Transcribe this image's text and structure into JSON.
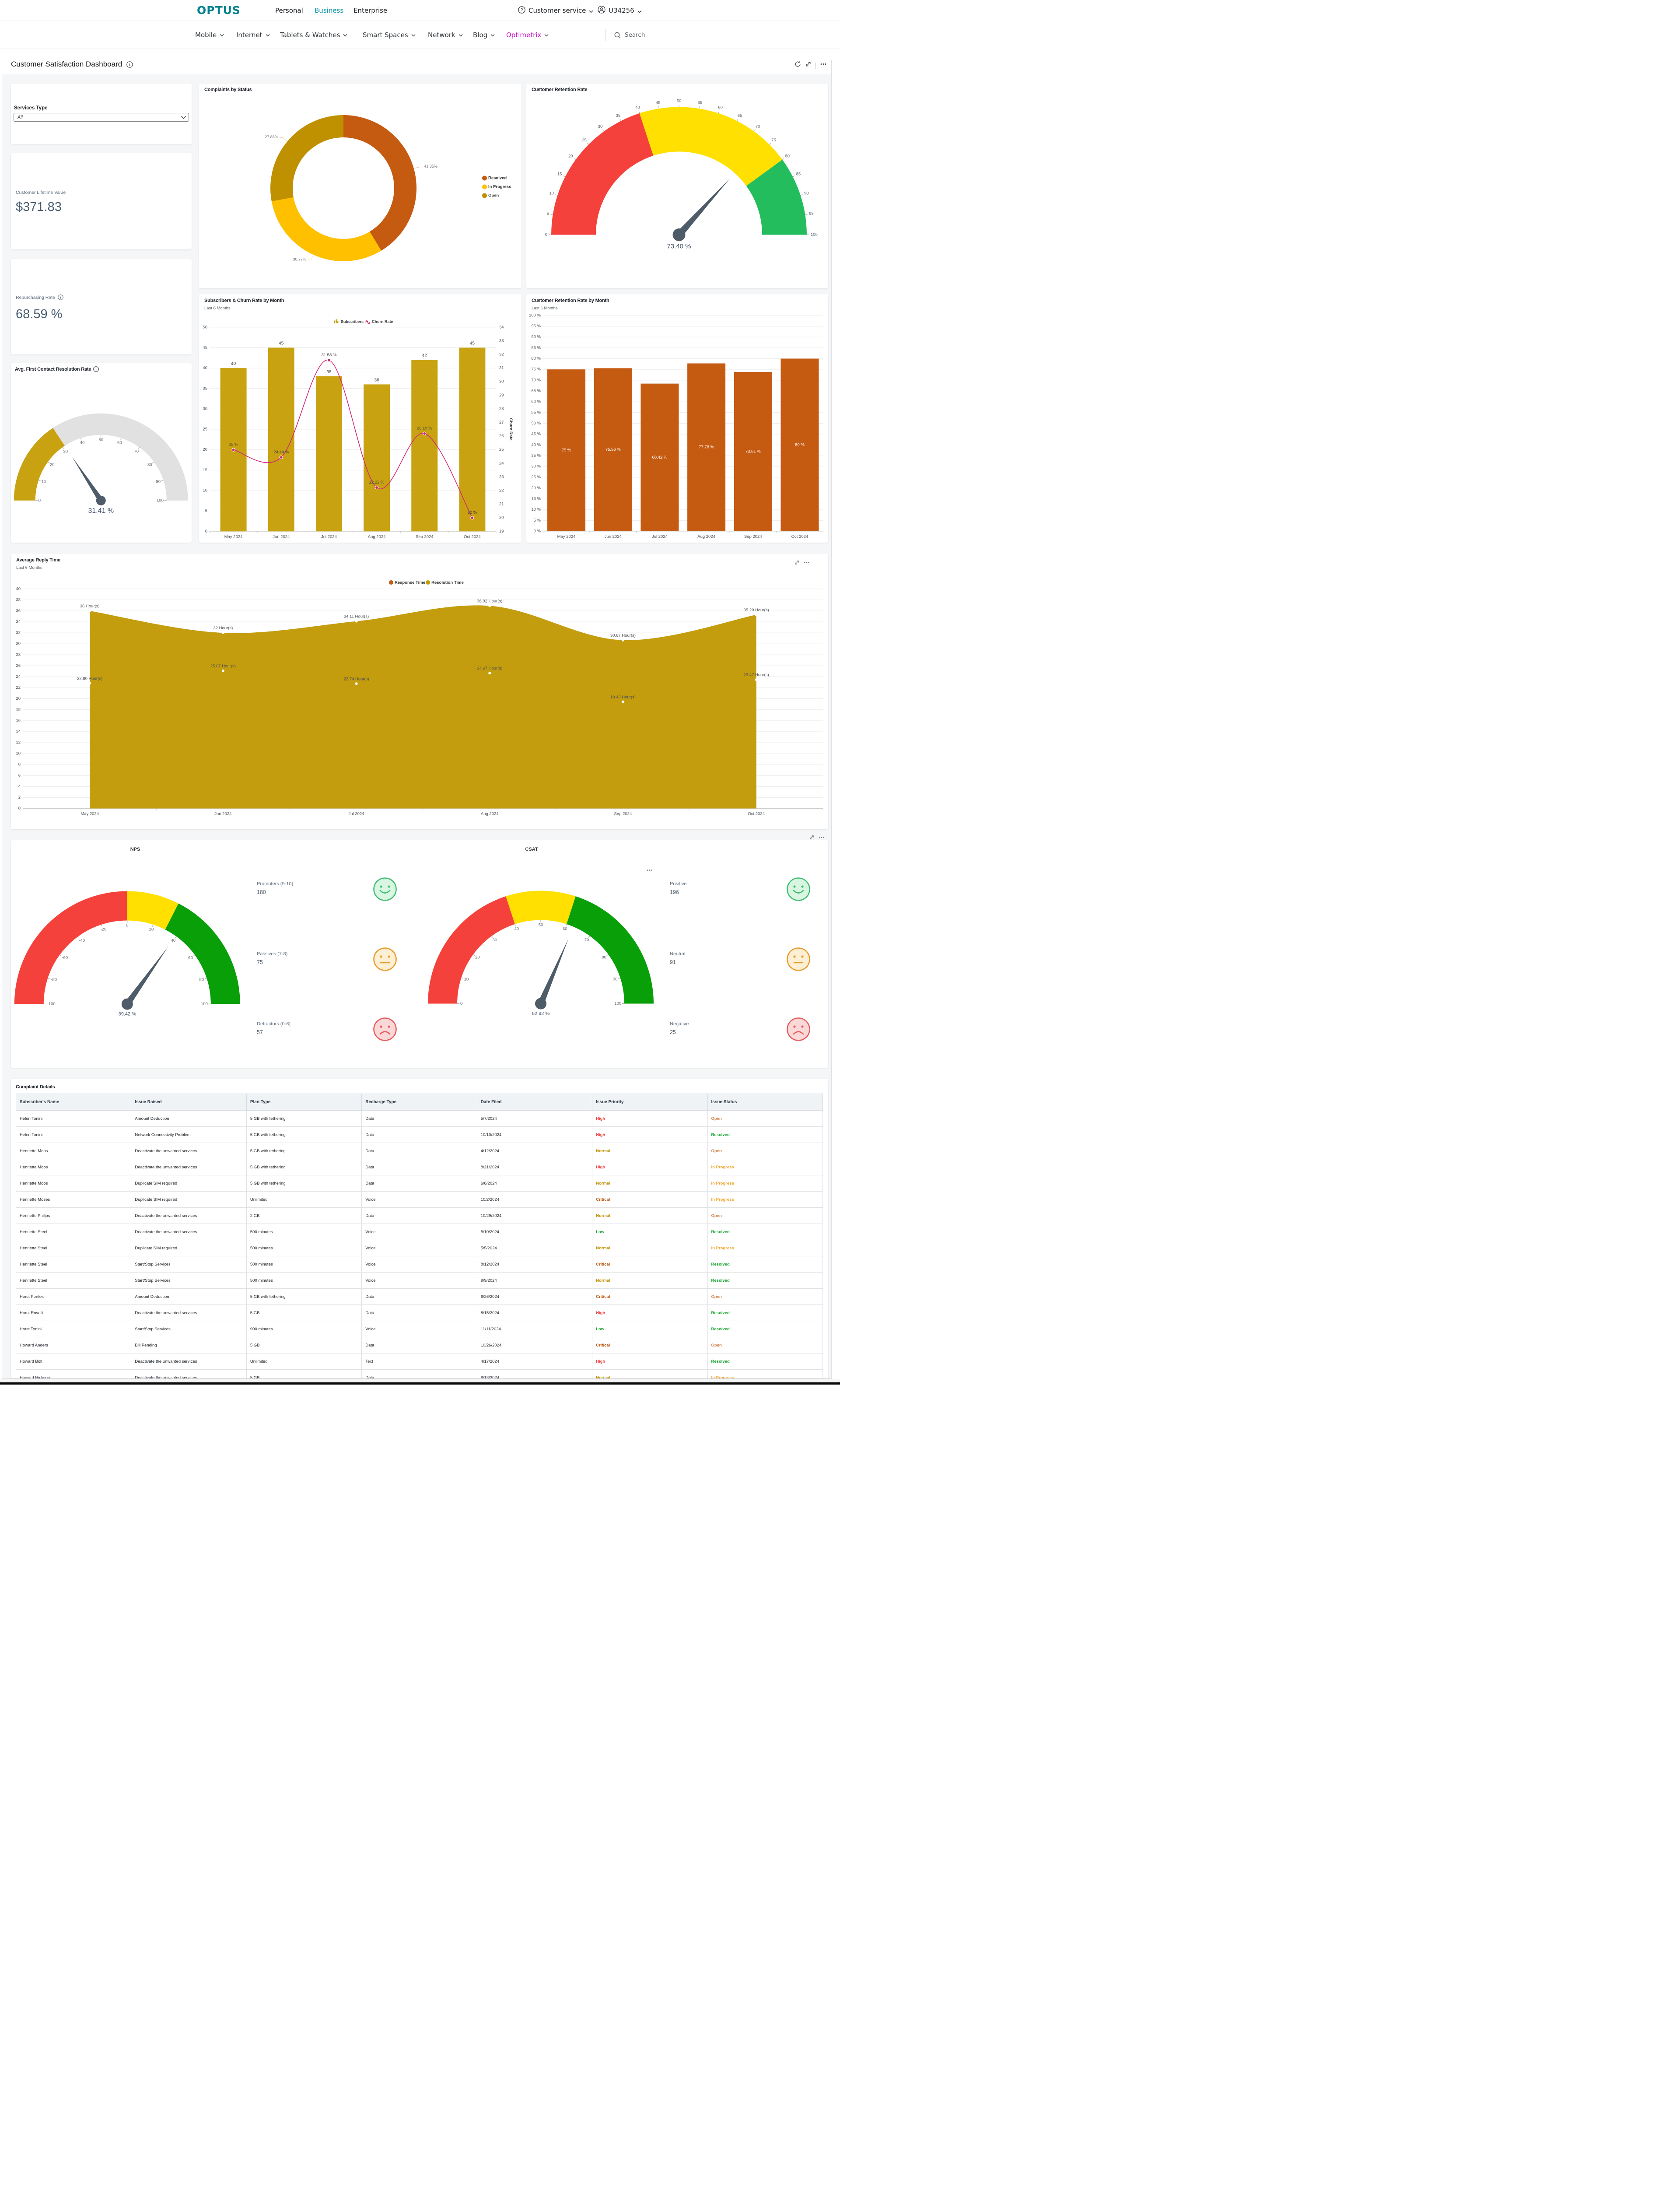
{
  "nav_top": {
    "logo": "OPTUS",
    "links": [
      {
        "label": "Personal",
        "active": false
      },
      {
        "label": "Business",
        "active": true
      },
      {
        "label": "Enterprise",
        "active": false
      }
    ],
    "help_label": "Customer service",
    "user_label": "U34256"
  },
  "nav_main": {
    "items": [
      {
        "label": "Mobile",
        "active": false
      },
      {
        "label": "Internet",
        "active": false
      },
      {
        "label": "Tablets & Watches",
        "active": false
      },
      {
        "label": "Smart Spaces",
        "active": false
      },
      {
        "label": "Network",
        "active": false
      },
      {
        "label": "Blog",
        "active": false
      },
      {
        "label": "Optimetrix",
        "active": true
      }
    ],
    "search_label": "Search"
  },
  "dashboard": {
    "title": "Customer Satisfaction Dashboard"
  },
  "filters": {
    "services_type_label": "Services Type",
    "services_type_value": "All"
  },
  "kpis": {
    "clv_label": "Customer Lifetime Value",
    "clv_value": "$371.83",
    "repurchasing_label": "Repurchasing Rate",
    "repurchasing_value": "68.59 %"
  },
  "chart_data": [
    {
      "id": "complaints",
      "type": "pie",
      "title": "Complaints by Status",
      "labels": [
        "Resolved",
        "In Progress",
        "Open"
      ],
      "values": [
        41.35,
        30.77,
        27.88
      ],
      "value_labels": [
        "41.35%",
        "30.77%",
        "27.88%"
      ],
      "colors": [
        "#C55A11",
        "#FFC000",
        "#BF9000"
      ],
      "legend_position": "right"
    },
    {
      "id": "retention_gauge",
      "type": "gauge",
      "title": "Customer Retention Rate",
      "min": 0,
      "max": 100,
      "value": 73.4,
      "value_label": "73.40 %",
      "zones": [
        {
          "from": 0,
          "to": 40,
          "color": "#F5413B"
        },
        {
          "from": 40,
          "to": 80,
          "color": "#FFE000"
        },
        {
          "from": 80,
          "to": 100,
          "color": "#23BD5D"
        }
      ],
      "tick_step": 5,
      "tick_labels": "outside"
    },
    {
      "id": "fcr_gauge",
      "type": "gauge",
      "title": "Avg. First Contact Resolution Rate",
      "min": 0,
      "max": 100,
      "value": 31.41,
      "value_label": "31.41 %",
      "zones": [
        {
          "from": 0,
          "to": 31.41,
          "color": "#C8A211"
        },
        {
          "from": 31.41,
          "to": 100,
          "color": "#E1E1E1"
        }
      ],
      "tick_step": 10,
      "tick_labels": "inside"
    },
    {
      "id": "subscribers",
      "type": "bar+line",
      "title": "Subscribers & Churn Rate by Month",
      "subtitle": "Last 6 Months",
      "categories": [
        "May 2024",
        "Jun 2024",
        "Jul 2024",
        "Aug 2024",
        "Sep 2024",
        "Oct 2024"
      ],
      "series": [
        {
          "name": "Subscribers",
          "type": "bar",
          "color": "#C8A211",
          "values": [
            40,
            45,
            38,
            36,
            42,
            45
          ]
        },
        {
          "name": "Churn Rate",
          "type": "line",
          "color": "#D22573",
          "values": [
            25,
            24.44,
            31.58,
            22.22,
            26.19,
            20
          ],
          "point_labels": [
            "25 %",
            "24.44 %",
            "31.58 %",
            "22.22 %",
            "26.19 %",
            "20 %"
          ]
        }
      ],
      "y_left": {
        "min": 0,
        "max": 50,
        "step": 5
      },
      "y_right": {
        "min": 19,
        "max": 34,
        "step": 1,
        "title": "Churn Rate"
      }
    },
    {
      "id": "retention_by_month",
      "type": "bar",
      "title": "Customer Retention Rate by Month",
      "subtitle": "Last 6 Months",
      "categories": [
        "May 2024",
        "Jun 2024",
        "Jul 2024",
        "Aug 2024",
        "Sep 2024",
        "Oct 2024"
      ],
      "values": [
        75,
        75.56,
        68.42,
        77.78,
        73.81,
        80
      ],
      "value_labels": [
        "75 %",
        "75.56 %",
        "68.42 %",
        "77.78 %",
        "73.81 %",
        "80 %"
      ],
      "color": "#C55A11",
      "y": {
        "min": 0,
        "max": 100,
        "step": 5,
        "suffix": " %"
      }
    },
    {
      "id": "reply_time",
      "type": "area",
      "title": "Average Reply Time",
      "subtitle": "Last 6 Months",
      "categories": [
        "May 2024",
        "Jun 2024",
        "Jul 2024",
        "Aug 2024",
        "Sep 2024",
        "Oct 2024"
      ],
      "series": [
        {
          "name": "Response Time",
          "color": "#C55A11",
          "values": [
            22.8,
            25.07,
            22.74,
            24.67,
            19.43,
            23.47
          ],
          "point_labels": [
            "22.80 Hour(s)",
            "25.07 Hour(s)",
            "22.74 Hour(s)",
            "24.67 Hour(s)",
            "19.43 Hour(s)",
            "23.47 Hour(s)"
          ]
        },
        {
          "name": "Resolution Time",
          "color": "#C49D0E",
          "values": [
            36,
            32,
            34.11,
            36.92,
            30.67,
            35.29
          ],
          "point_labels": [
            "36 Hour(s)",
            "32 Hour(s)",
            "34.11 Hour(s)",
            "36.92 Hour(s)",
            "30.67 Hour(s)",
            "35.29 Hour(s)"
          ]
        }
      ],
      "y": {
        "min": 0,
        "max": 40,
        "step": 2
      }
    },
    {
      "id": "nps",
      "type": "gauge",
      "title": "NPS",
      "min": -100,
      "max": 100,
      "value": 39.42,
      "value_label": "39.42 %",
      "zones": [
        {
          "from": -100,
          "to": 0,
          "color": "#F5413B"
        },
        {
          "from": 0,
          "to": 30,
          "color": "#FFE000"
        },
        {
          "from": 30,
          "to": 100,
          "color": "#089F08"
        }
      ],
      "tick_step": 20,
      "tick_labels": "inside",
      "stats": [
        {
          "label": "Promoters (9-10)",
          "value": "180",
          "icon": "happy"
        },
        {
          "label": "Passives (7-8)",
          "value": "75",
          "icon": "neutral"
        },
        {
          "label": "Detractors (0-6)",
          "value": "57",
          "icon": "sad"
        }
      ]
    },
    {
      "id": "csat",
      "type": "gauge",
      "title": "CSAT",
      "min": 0,
      "max": 100,
      "value": 62.82,
      "value_label": "62.82 %",
      "zones": [
        {
          "from": 0,
          "to": 40,
          "color": "#F5413B"
        },
        {
          "from": 40,
          "to": 60,
          "color": "#FFE000"
        },
        {
          "from": 60,
          "to": 100,
          "color": "#089F08"
        }
      ],
      "tick_step": 10,
      "tick_labels": "inside",
      "stats": [
        {
          "label": "Positive",
          "value": "196",
          "icon": "happy"
        },
        {
          "label": "Neutral",
          "value": "91",
          "icon": "neutral"
        },
        {
          "label": "Negative",
          "value": "25",
          "icon": "sad"
        }
      ]
    }
  ],
  "table": {
    "title": "Complaint Details",
    "columns": [
      "Subscriber's Name",
      "Issue Raised",
      "Plan Type",
      "Recharge Type",
      "Date Filed",
      "Issue Priority",
      "Issue Status"
    ],
    "priority_colors": {
      "High": "#EF4444",
      "Normal": "#BF9000",
      "Critical": "#BC570E",
      "Low": "#16A32F"
    },
    "status_colors": {
      "Open": "#CD7F44",
      "Resolved": "#16A32F",
      "In Progress": "#F0A529"
    },
    "rows": [
      [
        "Helen Tonini",
        "Amount Deduction",
        "5 GB with tethering",
        "Data",
        "5/7/2024",
        "High",
        "Open"
      ],
      [
        "Helen Tonini",
        "Network Connectivity Problem",
        "5 GB with tethering",
        "Data",
        "10/10/2024",
        "High",
        "Resolved"
      ],
      [
        "Henriette Moos",
        "Deactivate the unwanted services",
        "5 GB with tethering",
        "Data",
        "4/12/2024",
        "Normal",
        "Open"
      ],
      [
        "Henriette Moos",
        "Deactivate the unwanted services",
        "5 GB with tethering",
        "Data",
        "8/21/2024",
        "High",
        "In Progress"
      ],
      [
        "Henriette Moos",
        "Duplicate SIM required",
        "5 GB with tethering",
        "Data",
        "6/8/2024",
        "Normal",
        "In Progress"
      ],
      [
        "Henriette Moses",
        "Duplicate SIM required",
        "Unlimited",
        "Voice",
        "10/2/2024",
        "Critical",
        "In Progress"
      ],
      [
        "Henriette Philips",
        "Deactivate the unwanted services",
        "2 GB",
        "Data",
        "10/29/2024",
        "Normal",
        "Open"
      ],
      [
        "Henriette Steel",
        "Deactivate the unwanted services",
        "500 minutes",
        "Voice",
        "5/10/2024",
        "Low",
        "Resolved"
      ],
      [
        "Henriette Steel",
        "Duplicate SIM required",
        "500 minutes",
        "Voice",
        "5/5/2024",
        "Normal",
        "In Progress"
      ],
      [
        "Henriette Steel",
        "Start/Stop Services",
        "500 minutes",
        "Voice",
        "8/12/2024",
        "Critical",
        "Resolved"
      ],
      [
        "Henriette Steel",
        "Start/Stop Services",
        "500 minutes",
        "Voice",
        "9/9/2024",
        "Normal",
        "Resolved"
      ],
      [
        "Horst Pontes",
        "Amount Deduction",
        "5 GB with tethering",
        "Data",
        "6/26/2024",
        "Critical",
        "Open"
      ],
      [
        "Horst Rovelli",
        "Deactivate the unwanted services",
        "5 GB",
        "Data",
        "8/15/2024",
        "High",
        "Resolved"
      ],
      [
        "Horst Tonini",
        "Start/Stop Services",
        "900 minutes",
        "Voice",
        "11/11/2024",
        "Low",
        "Resolved"
      ],
      [
        "Howard Anders",
        "Bill Pending",
        "5 GB",
        "Data",
        "10/26/2024",
        "Critical",
        "Open"
      ],
      [
        "Howard Bolt",
        "Deactivate the unwanted services",
        "Unlimited",
        "Text",
        "4/17/2024",
        "High",
        "Resolved"
      ],
      [
        "Howard Hickson",
        "Deactivate the unwanted services",
        "5 GB",
        "Data",
        "8/13/2024",
        "Normal",
        "In Progress"
      ]
    ]
  }
}
